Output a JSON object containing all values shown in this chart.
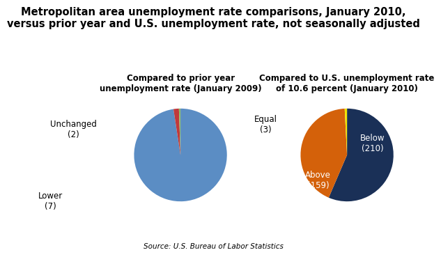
{
  "title": "Metropolitan area unemployment rate comparisons, January 2010,\nversus prior year and U.S. unemployment rate, not seasonally adjusted",
  "title_fontsize": 10.5,
  "source": "Source: U.S. Bureau of Labor Statistics",
  "pie1_title": "Compared to prior year\nunemployment rate (January 2009)",
  "pie1_values": [
    363,
    7,
    2
  ],
  "pie1_colors": [
    "#5b8dc4",
    "#c0393b",
    "#8aba6a"
  ],
  "pie1_startangle": 90,
  "pie2_title": "Compared to U.S. unemployment rate\nof 10.6 percent (January 2010)",
  "pie2_values": [
    210,
    159,
    3
  ],
  "pie2_colors": [
    "#1a3057",
    "#d4610a",
    "#f0e400"
  ],
  "pie2_startangle": 90
}
